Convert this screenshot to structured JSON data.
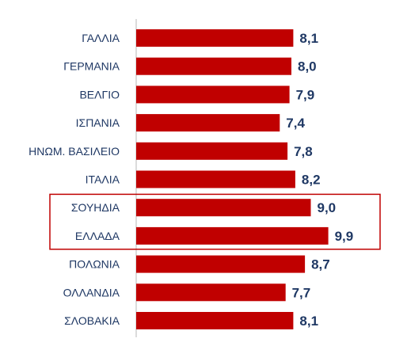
{
  "colors": {
    "bar": "#c00000",
    "axis": "#b7b7b7",
    "category_text": "#1f3864",
    "value_text": "#1f3864",
    "highlight_box": "#c00000"
  },
  "chart_data": {
    "type": "bar",
    "orientation": "horizontal",
    "categories": [
      "ΓΑΛΛΙΑ",
      "ΓΕΡΜΑΝΙΑ",
      "ΒΕΛΓΙΟ",
      "ΙΣΠΑΝΙΑ",
      "ΗΝΩΜ. ΒΑΣΙΛΕΙΟ",
      "ΙΤΑΛΙΑ",
      "ΣΟΥΗΔΙΑ",
      "ΕΛΛΑΔΑ",
      "ΠΟΛΩΝΙΑ",
      "ΟΛΛΑΝΔΙΑ",
      "ΣΛΟΒΑΚΙΑ"
    ],
    "values": [
      8.1,
      8.0,
      7.9,
      7.4,
      7.8,
      8.2,
      9.0,
      9.9,
      8.7,
      7.7,
      8.1
    ],
    "value_labels": [
      "8,1",
      "8,0",
      "7,9",
      "7,4",
      "7,8",
      "8,2",
      "9,0",
      "9,9",
      "8,7",
      "7,7",
      "8,1"
    ],
    "highlighted_categories": [
      "ΣΟΥΗΔΙΑ",
      "ΕΛΛΑΔΑ"
    ],
    "grid": false,
    "legend": "none"
  }
}
